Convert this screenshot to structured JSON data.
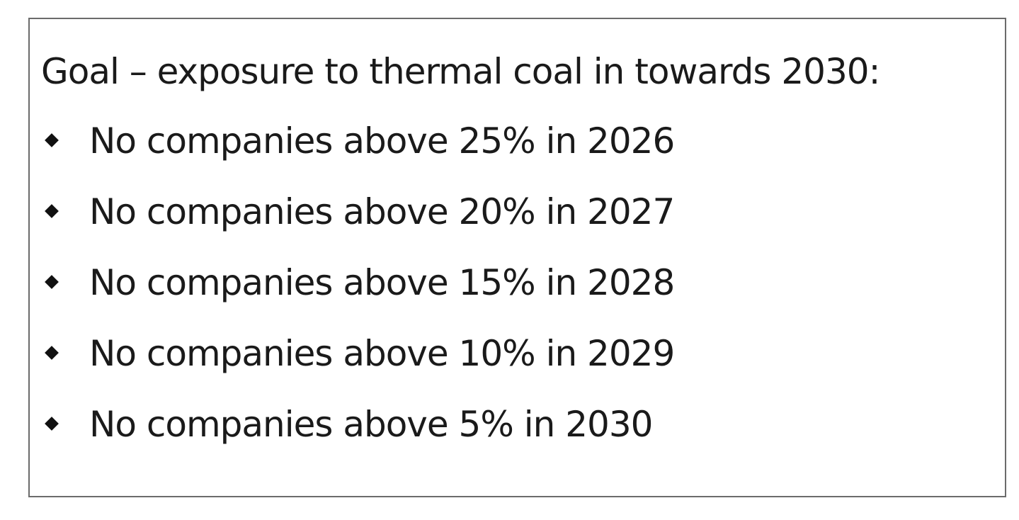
{
  "box": {
    "title": "Goal – exposure to thermal coal in towards 2030:",
    "items": [
      "No companies above 25% in 2026",
      "No companies above 20% in 2027",
      "No companies above 15% in 2028",
      "No companies above 10% in 2029",
      "No companies above 5% in 2030"
    ]
  }
}
